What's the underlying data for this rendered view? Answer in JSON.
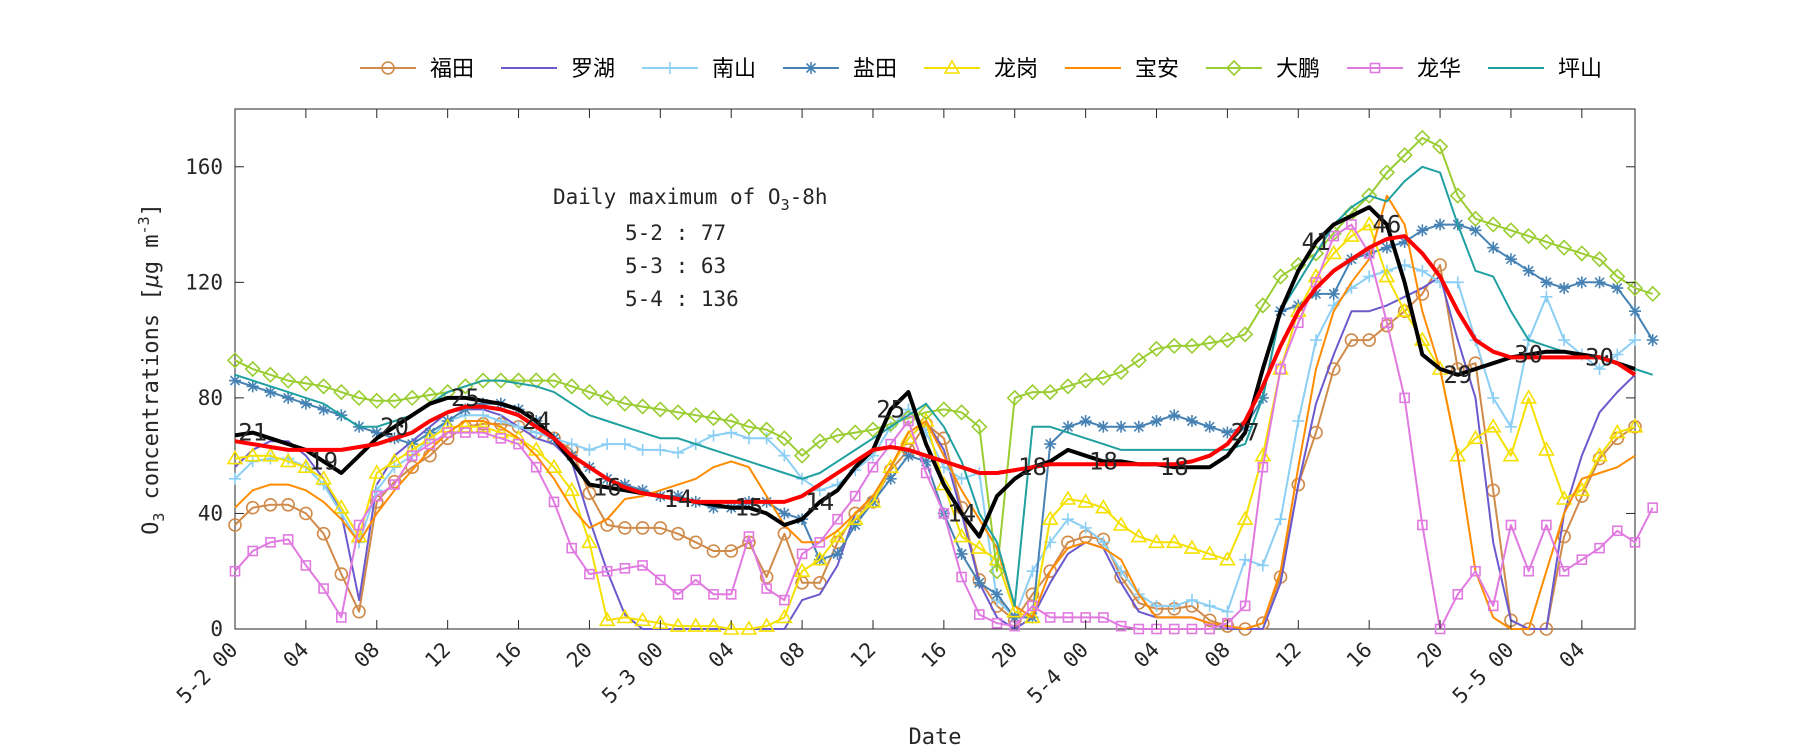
{
  "chart_data": {
    "type": "line",
    "xlabel": "Date",
    "ylabel": "O3 concentrations [μg m-3]",
    "ylabel_parts": {
      "o": "O",
      "sub3": "3",
      "mid": " concentrations [",
      "mu": "μ",
      "unit": "g m",
      "sup": "-3",
      "end": "]"
    },
    "ylim": [
      0,
      180
    ],
    "xlim": [
      0,
      79
    ],
    "y_ticks": [
      0,
      40,
      80,
      120,
      160
    ],
    "x_ticks": [
      {
        "x": 0,
        "label": "5-2 00"
      },
      {
        "x": 4,
        "label": "04"
      },
      {
        "x": 8,
        "label": "08"
      },
      {
        "x": 12,
        "label": "12"
      },
      {
        "x": 16,
        "label": "16"
      },
      {
        "x": 20,
        "label": "20"
      },
      {
        "x": 24,
        "label": "5-3 00"
      },
      {
        "x": 28,
        "label": "04"
      },
      {
        "x": 32,
        "label": "08"
      },
      {
        "x": 36,
        "label": "12"
      },
      {
        "x": 40,
        "label": "16"
      },
      {
        "x": 44,
        "label": "20"
      },
      {
        "x": 48,
        "label": "5-4 00"
      },
      {
        "x": 52,
        "label": "04"
      },
      {
        "x": 56,
        "label": "08"
      },
      {
        "x": 60,
        "label": "12"
      },
      {
        "x": 64,
        "label": "16"
      },
      {
        "x": 68,
        "label": "20"
      },
      {
        "x": 72,
        "label": "5-5 00"
      },
      {
        "x": 76,
        "label": "04"
      }
    ],
    "grid": false,
    "legend_position": "top",
    "annotation": {
      "title_pre": "Daily maximum of O",
      "title_sub": "3",
      "title_post": "-8h",
      "lines": [
        "5-2 : 77",
        "5-3 : 63",
        "5-4 : 136"
      ]
    },
    "black_line_labels": [
      {
        "x": 1,
        "text": "21"
      },
      {
        "x": 5,
        "text": "19"
      },
      {
        "x": 9,
        "text": "20"
      },
      {
        "x": 13,
        "text": "25"
      },
      {
        "x": 17,
        "text": "24"
      },
      {
        "x": 21,
        "text": "16"
      },
      {
        "x": 25,
        "text": "14"
      },
      {
        "x": 29,
        "text": "15"
      },
      {
        "x": 33,
        "text": "14"
      },
      {
        "x": 37,
        "text": "25"
      },
      {
        "x": 41,
        "text": "14"
      },
      {
        "x": 45,
        "text": "18"
      },
      {
        "x": 49,
        "text": "18"
      },
      {
        "x": 53,
        "text": "18"
      },
      {
        "x": 57,
        "text": "27"
      },
      {
        "x": 61,
        "text": "41"
      },
      {
        "x": 65,
        "text": "46"
      },
      {
        "x": 69,
        "text": "29"
      },
      {
        "x": 73,
        "text": "30"
      },
      {
        "x": 77,
        "text": "30"
      }
    ],
    "series": [
      {
        "name": "福田",
        "color": "#D08A4A",
        "marker": "circle",
        "values": [
          36,
          42,
          43,
          43,
          40,
          33,
          19,
          6,
          44,
          51,
          56,
          60,
          66,
          70,
          71,
          71,
          70,
          68,
          66,
          62,
          47,
          36,
          35,
          35,
          35,
          33,
          30,
          27,
          27,
          30,
          18,
          33,
          16,
          16,
          30,
          40,
          44,
          55,
          62,
          71,
          66,
          42,
          17,
          8,
          3,
          12,
          20,
          30,
          32,
          31,
          18,
          9,
          7,
          7,
          8,
          3,
          1,
          0,
          2,
          18,
          50,
          68,
          90,
          100,
          100,
          105,
          110,
          116,
          126,
          90,
          92,
          48,
          3,
          0,
          0,
          32,
          46,
          59,
          66,
          70
        ]
      },
      {
        "name": "罗湖",
        "color": "#6A5ACD",
        "marker": "none",
        "values": [
          56,
          62,
          65,
          65,
          60,
          52,
          40,
          10,
          50,
          60,
          65,
          70,
          75,
          76,
          76,
          74,
          70,
          66,
          64,
          58,
          38,
          20,
          5,
          0,
          0,
          0,
          0,
          0,
          0,
          0,
          0,
          0,
          10,
          12,
          22,
          40,
          46,
          56,
          66,
          72,
          62,
          40,
          16,
          4,
          0,
          4,
          16,
          26,
          30,
          28,
          16,
          6,
          4,
          4,
          4,
          2,
          0,
          0,
          0,
          16,
          50,
          78,
          95,
          110,
          110,
          112,
          115,
          118,
          122,
          100,
          80,
          30,
          3,
          0,
          0,
          40,
          60,
          75,
          82,
          88
        ]
      },
      {
        "name": "南山",
        "color": "#8CCFF5",
        "marker": "plus",
        "values": [
          52,
          58,
          59,
          59,
          56,
          50,
          40,
          30,
          48,
          56,
          60,
          66,
          72,
          74,
          74,
          72,
          70,
          68,
          66,
          64,
          62,
          64,
          64,
          62,
          62,
          61,
          64,
          67,
          68,
          66,
          66,
          60,
          52,
          48,
          50,
          55,
          60,
          70,
          76,
          68,
          56,
          52,
          54,
          10,
          4,
          20,
          30,
          38,
          35,
          30,
          20,
          12,
          8,
          8,
          10,
          8,
          6,
          24,
          22,
          38,
          72,
          100,
          112,
          118,
          122,
          124,
          126,
          124,
          120,
          120,
          100,
          80,
          70,
          100,
          115,
          100,
          95,
          90,
          95,
          100
        ]
      },
      {
        "name": "盐田",
        "color": "#4682B4",
        "marker": "star",
        "values": [
          86,
          84,
          82,
          80,
          78,
          76,
          74,
          70,
          68,
          66,
          64,
          68,
          72,
          76,
          78,
          78,
          76,
          72,
          66,
          60,
          56,
          52,
          50,
          48,
          46,
          46,
          44,
          42,
          42,
          44,
          44,
          40,
          38,
          24,
          26,
          36,
          44,
          52,
          60,
          58,
          40,
          26,
          16,
          12,
          4,
          4,
          64,
          70,
          72,
          70,
          70,
          70,
          72,
          74,
          72,
          70,
          68,
          70,
          80,
          110,
          112,
          116,
          116,
          128,
          130,
          132,
          134,
          138,
          140,
          140,
          138,
          132,
          128,
          124,
          120,
          118,
          120,
          120,
          118,
          110,
          100
        ]
      },
      {
        "name": "龙岗",
        "color": "#F5E000",
        "marker": "triangle",
        "values": [
          59,
          60,
          60,
          58,
          56,
          52,
          42,
          32,
          54,
          58,
          62,
          66,
          70,
          70,
          70,
          68,
          66,
          62,
          56,
          48,
          30,
          3,
          4,
          3,
          2,
          1,
          1,
          1,
          0,
          0,
          1,
          4,
          20,
          24,
          32,
          38,
          44,
          56,
          66,
          72,
          50,
          32,
          28,
          24,
          6,
          4,
          38,
          45,
          44,
          42,
          36,
          32,
          30,
          30,
          28,
          26,
          24,
          38,
          60,
          90,
          110,
          122,
          130,
          136,
          140,
          122,
          110,
          100,
          90,
          60,
          66,
          70,
          60,
          80,
          62,
          45,
          48,
          60,
          68,
          70
        ]
      },
      {
        "name": "宝安",
        "color": "#FF8C00",
        "marker": "none",
        "values": [
          42,
          48,
          50,
          50,
          48,
          44,
          38,
          30,
          40,
          48,
          55,
          62,
          68,
          72,
          72,
          70,
          66,
          60,
          52,
          42,
          35,
          38,
          45,
          46,
          48,
          50,
          52,
          56,
          58,
          56,
          46,
          36,
          30,
          30,
          34,
          40,
          46,
          56,
          68,
          72,
          60,
          48,
          38,
          28,
          8,
          4,
          20,
          28,
          30,
          28,
          24,
          12,
          4,
          4,
          4,
          2,
          1,
          0,
          2,
          20,
          56,
          90,
          110,
          120,
          128,
          150,
          140,
          110,
          90,
          60,
          20,
          4,
          0,
          0,
          20,
          40,
          52,
          54,
          56,
          60
        ]
      },
      {
        "name": "大鹏",
        "color": "#9ACD32",
        "marker": "diamond",
        "values": [
          93,
          90,
          88,
          86,
          85,
          84,
          82,
          80,
          79,
          79,
          80,
          81,
          82,
          84,
          86,
          86,
          86,
          86,
          86,
          84,
          82,
          80,
          78,
          77,
          76,
          75,
          74,
          73,
          72,
          70,
          69,
          66,
          60,
          65,
          67,
          68,
          69,
          71,
          73,
          75,
          76,
          75,
          70,
          20,
          80,
          82,
          82,
          84,
          86,
          87,
          89,
          93,
          97,
          98,
          98,
          99,
          100,
          102,
          112,
          122,
          126,
          130,
          137,
          144,
          150,
          158,
          164,
          170,
          167,
          150,
          142,
          140,
          138,
          136,
          134,
          132,
          130,
          128,
          122,
          118,
          116
        ]
      },
      {
        "name": "龙华",
        "color": "#E07AE0",
        "marker": "square",
        "values": [
          20,
          27,
          30,
          31,
          22,
          14,
          4,
          36,
          46,
          50,
          60,
          64,
          68,
          68,
          68,
          66,
          64,
          56,
          44,
          28,
          19,
          20,
          21,
          22,
          17,
          12,
          17,
          12,
          12,
          32,
          14,
          10,
          26,
          30,
          38,
          46,
          56,
          64,
          72,
          54,
          40,
          18,
          5,
          2,
          1,
          8,
          4,
          4,
          4,
          4,
          1,
          0,
          0,
          0,
          0,
          0,
          2,
          8,
          56,
          90,
          106,
          120,
          136,
          140,
          130,
          106,
          80,
          36,
          0,
          12,
          20,
          8,
          36,
          20,
          36,
          20,
          24,
          28,
          34,
          30,
          42
        ]
      },
      {
        "name": "坪山",
        "color": "#20A0A0",
        "marker": "none",
        "values": [
          88,
          86,
          84,
          82,
          80,
          78,
          74,
          70,
          70,
          72,
          74,
          78,
          82,
          84,
          86,
          86,
          85,
          84,
          82,
          78,
          74,
          72,
          70,
          68,
          66,
          66,
          64,
          62,
          60,
          58,
          56,
          54,
          52,
          54,
          58,
          62,
          66,
          70,
          74,
          78,
          70,
          58,
          40,
          30,
          8,
          70,
          70,
          68,
          66,
          64,
          62,
          62,
          62,
          62,
          62,
          62,
          62,
          64,
          80,
          110,
          120,
          130,
          140,
          146,
          150,
          148,
          155,
          160,
          158,
          140,
          124,
          122,
          110,
          100,
          98,
          96,
          94,
          94,
          92,
          90,
          88
        ]
      },
      {
        "name": "",
        "color": "#000000",
        "marker": "none",
        "width": 4,
        "values": [
          67,
          68,
          66,
          64,
          62,
          58,
          54,
          60,
          66,
          70,
          74,
          78,
          80,
          80,
          79,
          78,
          76,
          72,
          66,
          58,
          50,
          49,
          48,
          47,
          46,
          45,
          44,
          43,
          42,
          42,
          40,
          36,
          38,
          44,
          48,
          56,
          62,
          76,
          82,
          64,
          50,
          40,
          32,
          46,
          52,
          56,
          58,
          62,
          60,
          58,
          58,
          57,
          57,
          56,
          56,
          56,
          60,
          68,
          90,
          110,
          124,
          134,
          140,
          143,
          146,
          140,
          120,
          95,
          90,
          88,
          90,
          92,
          94,
          95,
          96,
          96,
          95,
          94,
          92,
          90
        ]
      },
      {
        "name": "",
        "color": "#FF0000",
        "marker": "none",
        "width": 4,
        "values": [
          65,
          64,
          63,
          62,
          62,
          62,
          62,
          63,
          64,
          66,
          68,
          72,
          75,
          77,
          77,
          76,
          74,
          70,
          66,
          60,
          56,
          52,
          49,
          47,
          46,
          45,
          44,
          44,
          44,
          44,
          44,
          44,
          46,
          50,
          54,
          58,
          62,
          63,
          62,
          60,
          58,
          56,
          54,
          54,
          55,
          56,
          57,
          57,
          57,
          57,
          57,
          57,
          57,
          57,
          58,
          60,
          64,
          72,
          84,
          98,
          110,
          118,
          124,
          128,
          132,
          135,
          136,
          130,
          122,
          110,
          100,
          96,
          94,
          94,
          94,
          94,
          94,
          94,
          92,
          88
        ]
      }
    ]
  }
}
